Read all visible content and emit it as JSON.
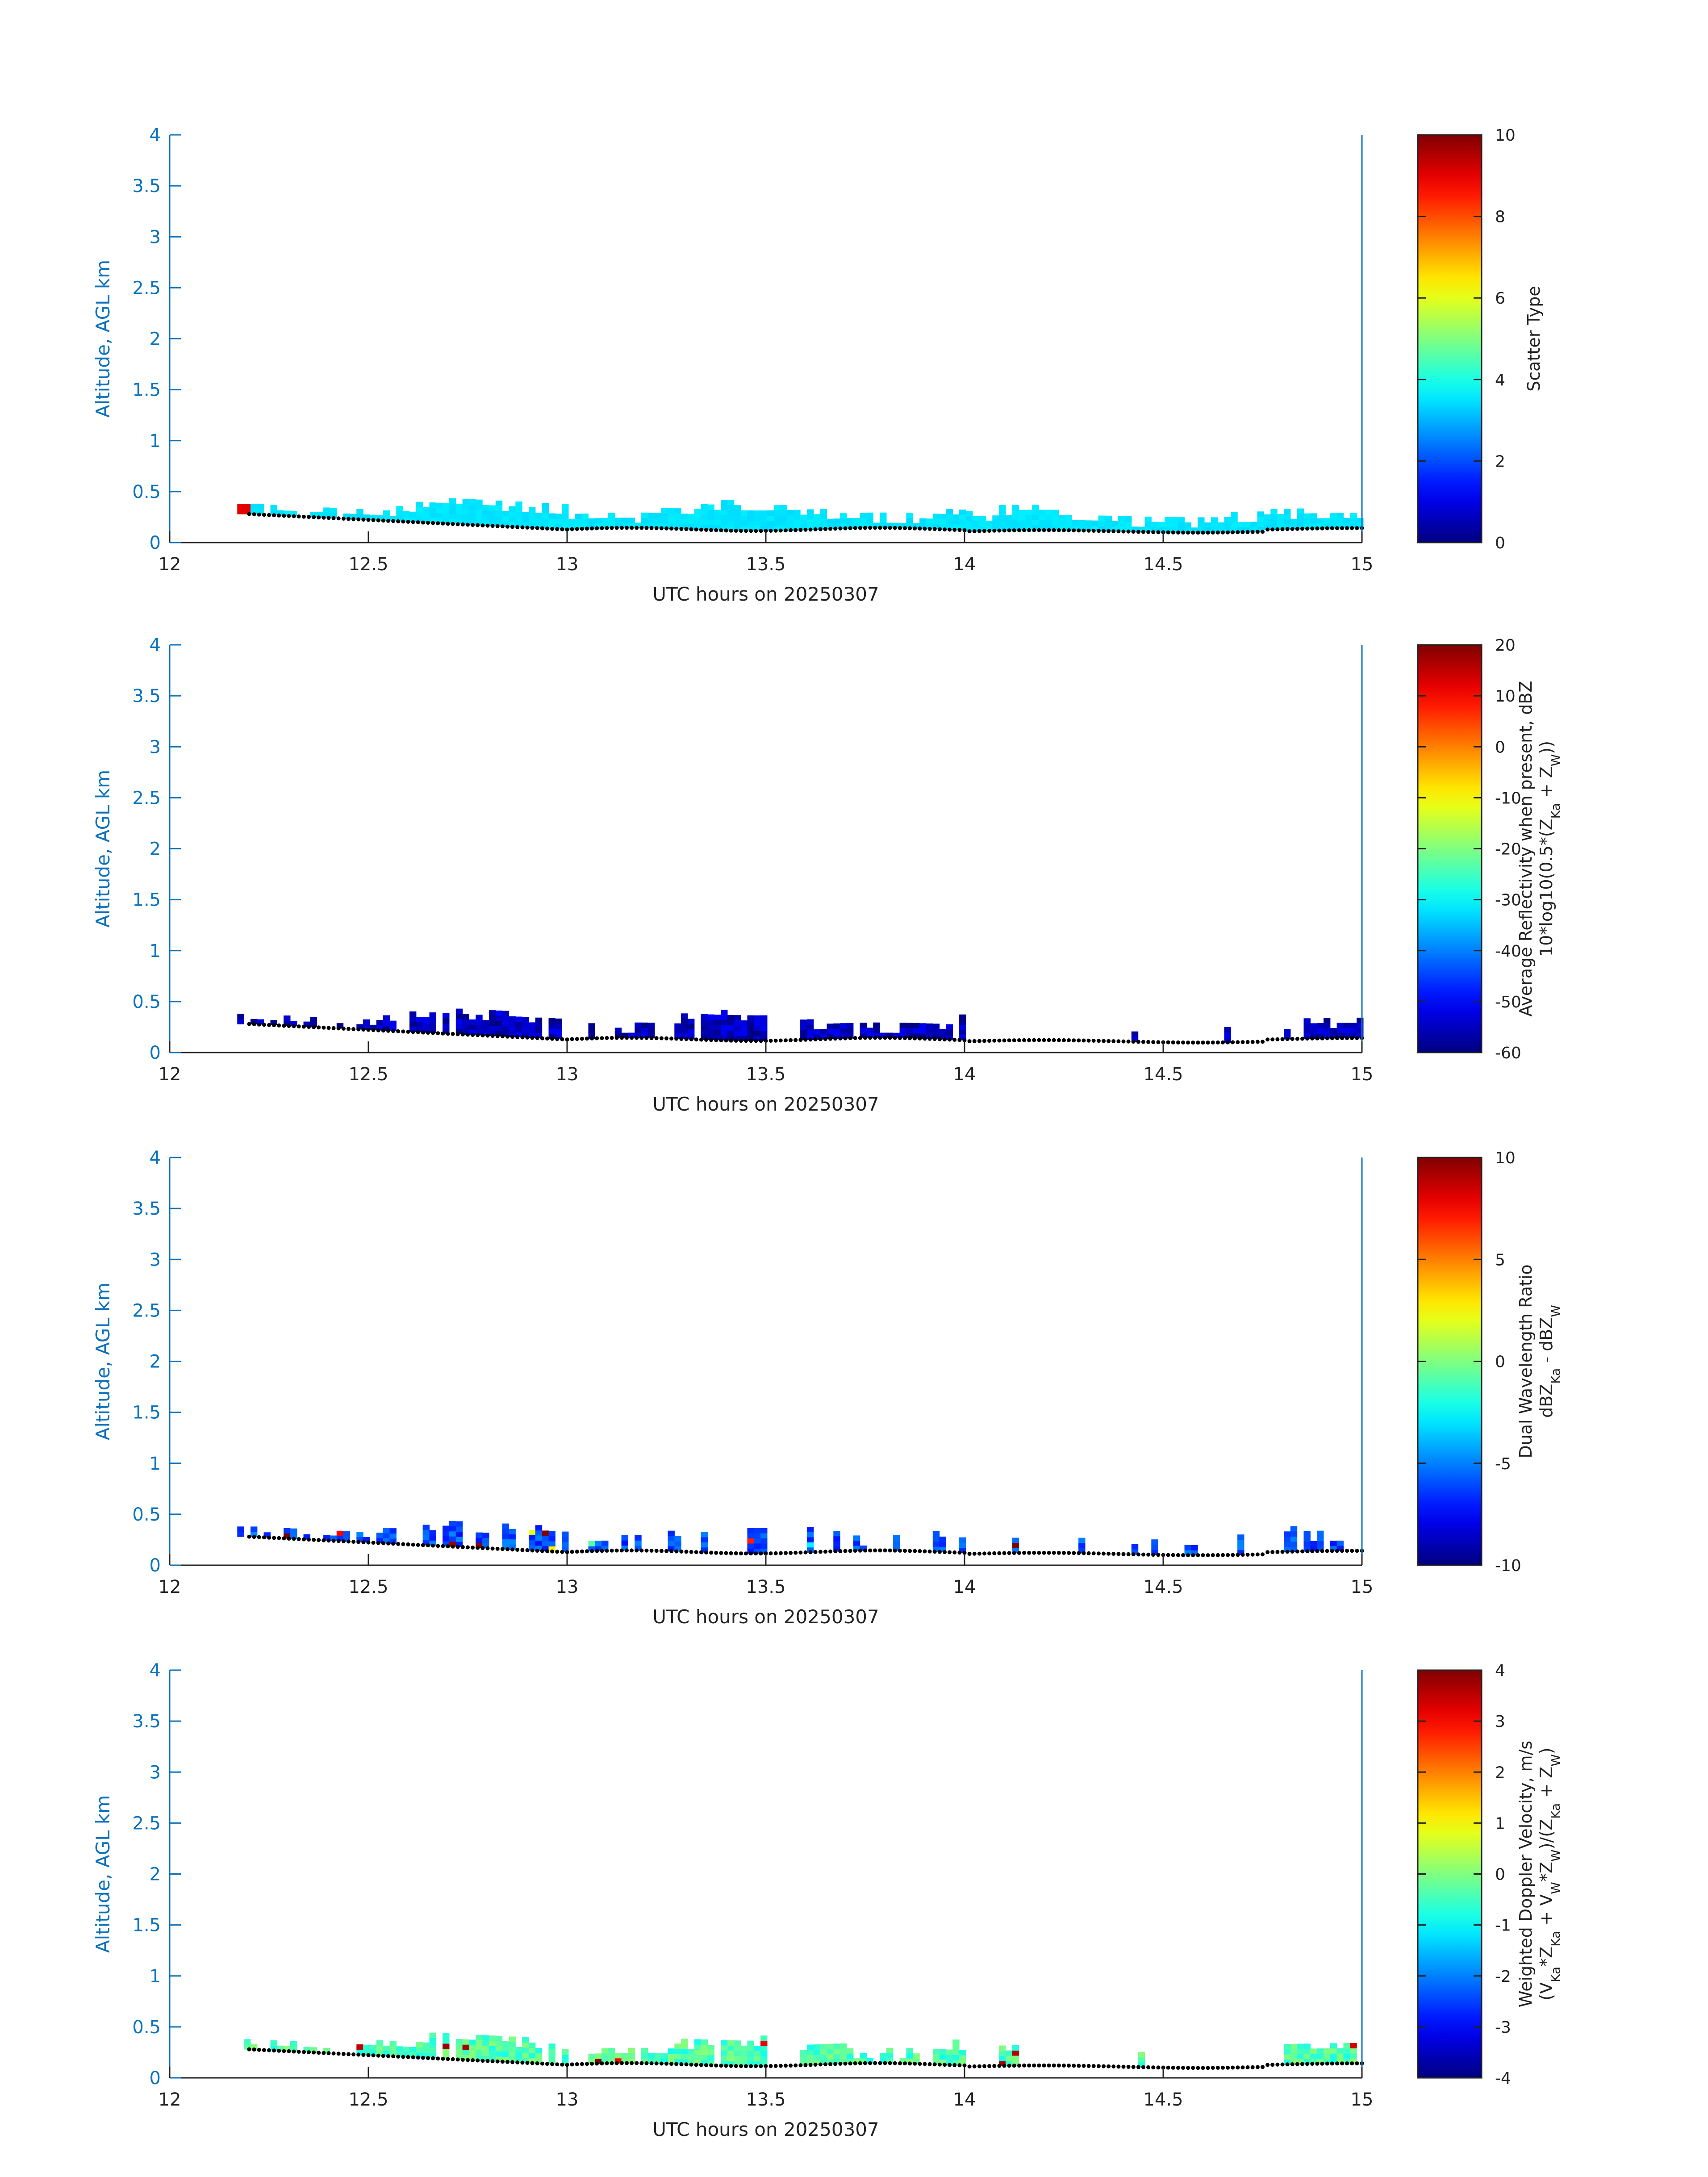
{
  "chart_data": [
    {
      "type": "heatmap",
      "panel": 1,
      "ylabel": "Altitude, AGL km",
      "xlabel": "UTC hours on 20250307",
      "xlim": [
        12,
        15
      ],
      "ylim": [
        0,
        4
      ],
      "xticks": [
        "12",
        "12.5",
        "13",
        "13.5",
        "14",
        "14.5",
        "15"
      ],
      "yticks": [
        "0",
        "0.5",
        "1",
        "1.5",
        "2",
        "2.5",
        "3",
        "3.5",
        "4"
      ],
      "colorbar": {
        "title_lines": [
          "Scatter Type"
        ],
        "range": [
          0,
          10
        ],
        "ticks": [
          "0",
          "2",
          "4",
          "6",
          "8",
          "10"
        ]
      },
      "note_field": "Scatter type; mostly value ~3.5 (cyan) between 0.1 and 0.45 km, brief red (~9) near 12.17 h",
      "typical_value": 3.5,
      "spikes": [
        {
          "x": 12.18,
          "v": 9
        }
      ],
      "density": 1.0
    },
    {
      "type": "heatmap",
      "panel": 2,
      "ylabel": "Altitude, AGL km",
      "xlabel": "UTC hours on 20250307",
      "xlim": [
        12,
        15
      ],
      "ylim": [
        0,
        4
      ],
      "xticks": [
        "12",
        "12.5",
        "13",
        "13.5",
        "14",
        "14.5",
        "15"
      ],
      "yticks": [
        "0",
        "0.5",
        "1",
        "1.5",
        "2",
        "2.5",
        "3",
        "3.5",
        "4"
      ],
      "colorbar": {
        "title_lines": [
          "Average Reflectivity when present, dBZ",
          "10*log10(0.5*(Z_Ka + Z_W))"
        ],
        "range": [
          -60,
          20
        ],
        "ticks": [
          "-60",
          "-50",
          "-40",
          "-30",
          "-20",
          "-10",
          "0",
          "10",
          "20"
        ]
      },
      "typical_value": -55,
      "density": 0.8
    },
    {
      "type": "heatmap",
      "panel": 3,
      "ylabel": "Altitude, AGL km",
      "xlabel": "UTC hours on 20250307",
      "xlim": [
        12,
        15
      ],
      "ylim": [
        0,
        4
      ],
      "xticks": [
        "12",
        "12.5",
        "13",
        "13.5",
        "14",
        "14.5",
        "15"
      ],
      "yticks": [
        "0",
        "0.5",
        "1",
        "1.5",
        "2",
        "2.5",
        "3",
        "3.5",
        "4"
      ],
      "colorbar": {
        "title_lines": [
          "Dual Wavelength Ratio",
          "dBZ_Ka - dBZ_W"
        ],
        "range": [
          -10,
          10
        ],
        "ticks": [
          "-10",
          "-5",
          "0",
          "5",
          "10"
        ]
      },
      "typical_value": -6,
      "density": 0.45
    },
    {
      "type": "heatmap",
      "panel": 4,
      "ylabel": "Altitude, AGL km",
      "xlabel": "UTC hours on 20250307",
      "xlim": [
        12,
        15
      ],
      "ylim": [
        0,
        4
      ],
      "xticks": [
        "12",
        "12.5",
        "13",
        "13.5",
        "14",
        "14.5",
        "15"
      ],
      "yticks": [
        "0",
        "0.5",
        "1",
        "1.5",
        "2",
        "2.5",
        "3",
        "3.5",
        "4"
      ],
      "colorbar": {
        "title_lines": [
          "Weighted Doppler Velocity, m/s",
          "(V_Ka*Z_Ka + V_W*Z_W)/(Z_Ka + Z_W)"
        ],
        "range": [
          -4,
          4
        ],
        "ticks": [
          "-4",
          "-3",
          "-2",
          "-1",
          "0",
          "1",
          "2",
          "3",
          "4"
        ]
      },
      "typical_value": -0.4,
      "density": 0.8
    }
  ],
  "colors": {
    "axis_blue": "#0b72bd",
    "text_dark": "#222222"
  }
}
